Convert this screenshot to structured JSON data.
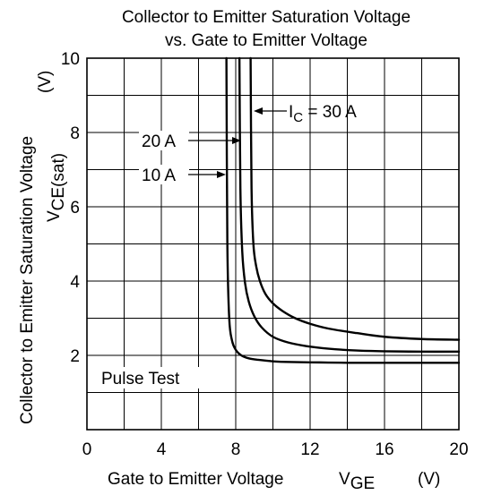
{
  "chart_data": {
    "type": "line",
    "title_line1": "Collector to Emitter Saturation Voltage",
    "title_line2": "vs. Gate to Emitter Voltage",
    "xlabel": "Gate to Emitter Voltage",
    "xlabel_symbol": "V",
    "xlabel_subscript": "GE",
    "xlabel_unit": "(V)",
    "ylabel": "Collector to Emitter Saturation Voltage",
    "ylabel_symbol": "V",
    "ylabel_subscript": "CE(sat)",
    "ylabel_unit": "(V)",
    "xlim": [
      0,
      20
    ],
    "ylim": [
      0,
      10
    ],
    "x_ticks": [
      0,
      4,
      8,
      12,
      16,
      20
    ],
    "y_ticks": [
      2,
      4,
      6,
      8,
      10
    ],
    "x_tick_labels": [
      "0",
      "4",
      "8",
      "12",
      "16",
      "20"
    ],
    "y_tick_labels": [
      "2",
      "4",
      "6",
      "8",
      "10"
    ],
    "grid": true,
    "note": "Pulse Test",
    "series": [
      {
        "name": "10 A",
        "x": [
          7.5,
          7.55,
          7.65,
          7.8,
          8.0,
          8.3,
          8.7,
          9.2,
          10.0,
          11.0,
          12.5,
          14.0,
          16.0,
          18.0,
          20.0
        ],
        "y": [
          10.0,
          5.0,
          3.0,
          2.4,
          2.15,
          2.0,
          1.92,
          1.88,
          1.84,
          1.82,
          1.81,
          1.8,
          1.8,
          1.8,
          1.8
        ]
      },
      {
        "name": "20 A",
        "x": [
          8.2,
          8.25,
          8.35,
          8.5,
          8.7,
          9.0,
          9.4,
          10.0,
          10.8,
          11.8,
          13.0,
          14.5,
          16.0,
          18.0,
          20.0
        ],
        "y": [
          10.0,
          6.5,
          4.8,
          3.95,
          3.45,
          3.05,
          2.75,
          2.5,
          2.35,
          2.25,
          2.18,
          2.13,
          2.11,
          2.1,
          2.1
        ]
      },
      {
        "name": "30 A",
        "x": [
          8.8,
          8.85,
          8.95,
          9.1,
          9.3,
          9.6,
          10.0,
          10.5,
          11.2,
          12.0,
          13.0,
          14.5,
          16.0,
          18.0,
          20.0
        ],
        "y": [
          10.0,
          6.5,
          5.0,
          4.4,
          4.0,
          3.65,
          3.4,
          3.2,
          3.0,
          2.85,
          2.72,
          2.6,
          2.5,
          2.44,
          2.42
        ]
      }
    ],
    "annotations": {
      "ic_label": "I",
      "ic_subscript": "C",
      "ic_value": " = 30 A",
      "label_20": "20 A",
      "label_10": "10 A"
    }
  }
}
